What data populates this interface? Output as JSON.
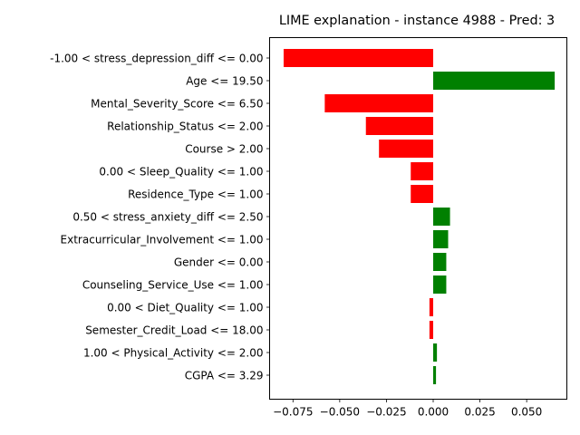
{
  "chart_data": {
    "type": "bar",
    "orientation": "horizontal",
    "title": "LIME explanation - instance 4988 - Pred: 3",
    "xlabel": "",
    "ylabel": "",
    "xlim": [
      -0.0875,
      0.0715
    ],
    "xticks": [
      -0.075,
      -0.05,
      -0.025,
      0.0,
      0.025,
      0.05
    ],
    "xtick_labels": [
      "−0.075",
      "−0.050",
      "−0.025",
      "0.000",
      "0.025",
      "0.050"
    ],
    "grid": false,
    "positive_color": "#008000",
    "negative_color": "#ff0000",
    "categories": [
      "-1.00 < stress_depression_diff <= 0.00",
      "Age <= 19.50",
      "Mental_Severity_Score <= 6.50",
      "Relationship_Status <= 2.00",
      "Course > 2.00",
      "0.00 < Sleep_Quality <= 1.00",
      "Residence_Type <= 1.00",
      "0.50 < stress_anxiety_diff <= 2.50",
      "Extracurricular_Involvement <= 1.00",
      "Gender <= 0.00",
      "Counseling_Service_Use <= 1.00",
      "0.00 < Diet_Quality <= 1.00",
      "Semester_Credit_Load <= 18.00",
      "1.00 < Physical_Activity <= 2.00",
      "CGPA <= 3.29"
    ],
    "values": [
      -0.08,
      0.065,
      -0.058,
      -0.036,
      -0.029,
      -0.012,
      -0.012,
      0.009,
      0.008,
      0.007,
      0.007,
      -0.002,
      -0.002,
      0.002,
      0.0015
    ]
  }
}
